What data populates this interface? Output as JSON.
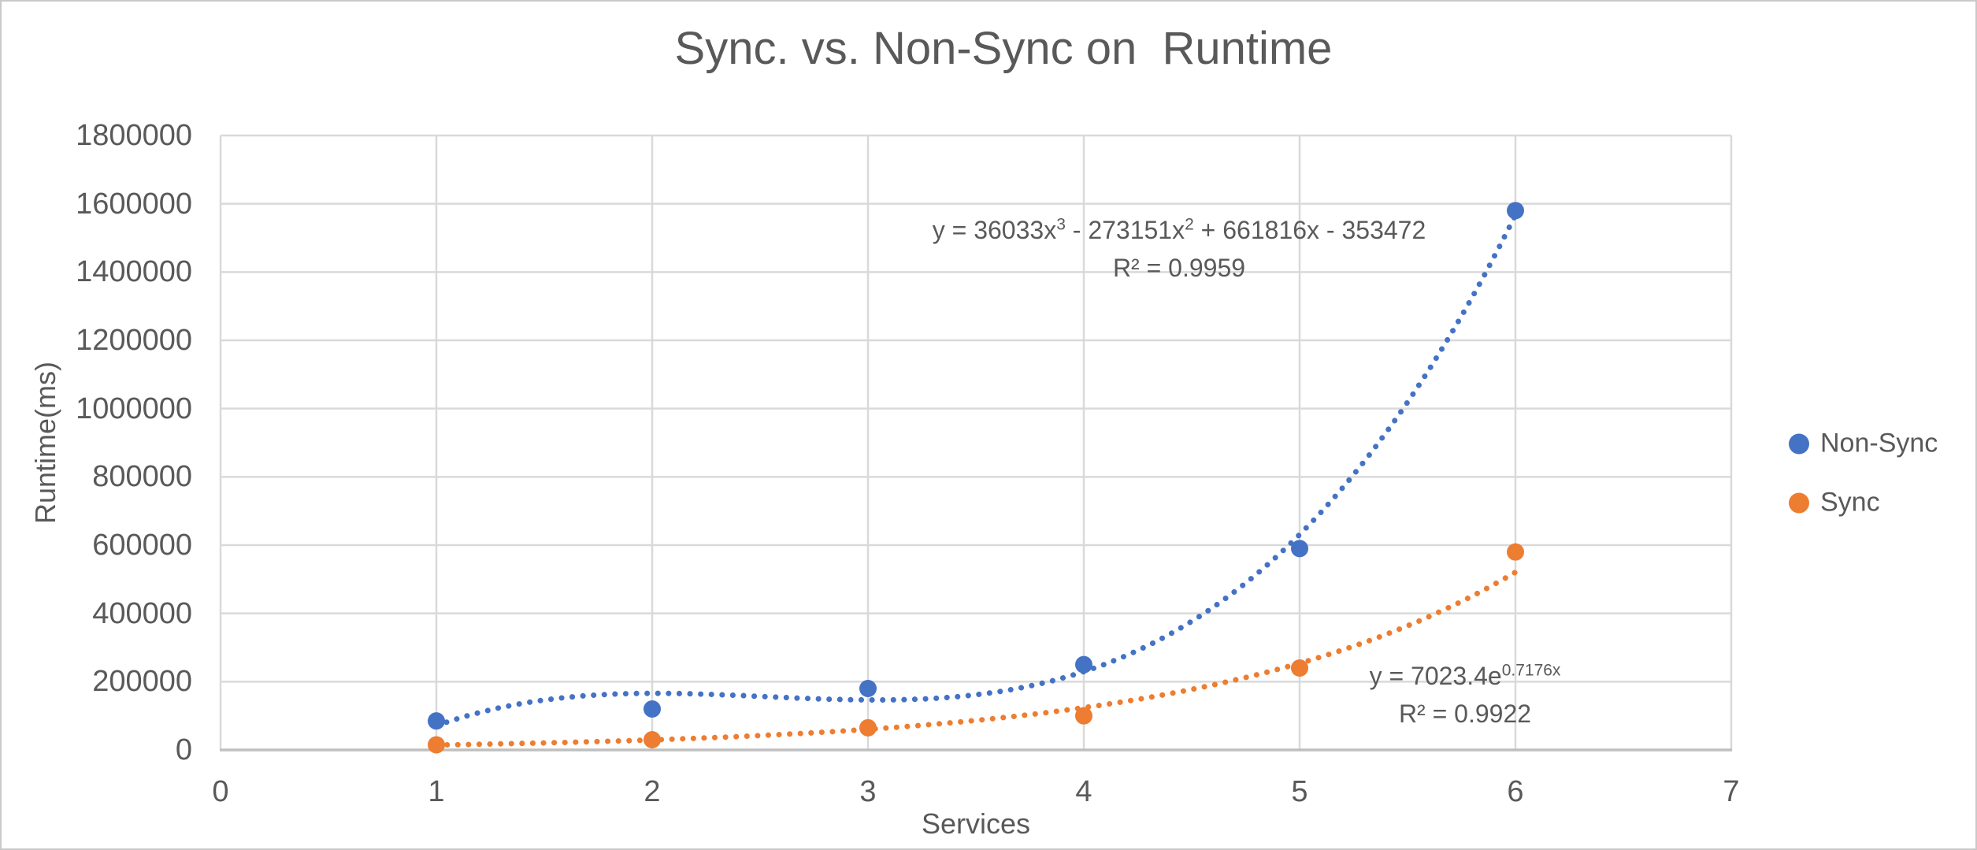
{
  "chart_data": {
    "type": "scatter",
    "title": "Sync. vs. Non-Sync on  Runtime",
    "xlabel": "Services",
    "ylabel": "Runtime(ms)",
    "xlim": [
      0,
      7
    ],
    "ylim": [
      0,
      1800000
    ],
    "x_ticks": [
      0,
      1,
      2,
      3,
      4,
      5,
      6,
      7
    ],
    "y_ticks": [
      0,
      200000,
      400000,
      600000,
      800000,
      1000000,
      1200000,
      1400000,
      1600000,
      1800000
    ],
    "grid": true,
    "legend_position": "right",
    "colors": {
      "non_sync": "#4472C4",
      "sync": "#ED7D31",
      "gridline": "#D9D9D9",
      "axis_line": "#BFBFBF",
      "text": "#595959"
    },
    "series": [
      {
        "name": "Non-Sync",
        "color": "#4472C4",
        "x": [
          1,
          2,
          3,
          4,
          5,
          6
        ],
        "y": [
          85000,
          120000,
          180000,
          250000,
          590000,
          1580000
        ],
        "trendline": {
          "kind": "cubic",
          "coeffs": [
            36033,
            -273151,
            661816,
            -353472
          ],
          "range": [
            1,
            6
          ],
          "style": "dotted",
          "equation": {
            "base1": "y = 36033x",
            "sup1": "3",
            "base2": " - 273151x",
            "sup2": "2",
            "base3": " + 661816x - 353472"
          },
          "r2": "R² = 0.9959"
        }
      },
      {
        "name": "Sync",
        "color": "#ED7D31",
        "x": [
          1,
          2,
          3,
          4,
          5,
          6
        ],
        "y": [
          15000,
          30000,
          65000,
          100000,
          240000,
          580000
        ],
        "trendline": {
          "kind": "exponential",
          "a": 7023.4,
          "b": 0.7176,
          "range": [
            1,
            6
          ],
          "style": "dotted",
          "equation": {
            "base1": "y = 7023.4e",
            "sup1": "0.7176x"
          },
          "r2": "R² = 0.9922"
        }
      }
    ]
  }
}
